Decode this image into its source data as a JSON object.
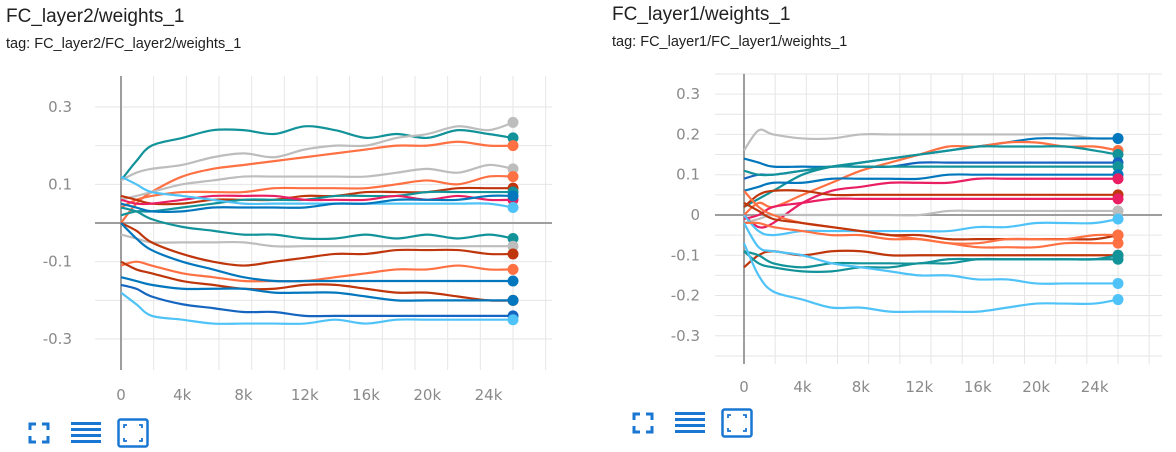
{
  "panels": [
    {
      "title": "FC_layer2/weights_1",
      "tag": "tag: FC_layer2/FC_layer2/weights_1"
    },
    {
      "title": "FC_layer1/weights_1",
      "tag": "tag: FC_layer1/FC_layer1/weights_1"
    }
  ],
  "toolbar_icons": [
    "expand-icon",
    "toggle-data-icon",
    "fit-domain-icon"
  ],
  "accent_color": "#1976d2",
  "chart_data": [
    {
      "type": "line",
      "xlim": [
        0,
        25600
      ],
      "ylim": [
        -0.38,
        0.38
      ],
      "x_ticks": [
        0,
        4000,
        8000,
        12000,
        16000,
        20000,
        24000
      ],
      "x_tick_labels": [
        "0",
        "4k",
        "8k",
        "12k",
        "16k",
        "20k",
        "24k"
      ],
      "y_ticks": [
        0.3,
        0.1,
        -0.1,
        -0.3
      ],
      "y_tick_labels": [
        "0.3",
        "0.1",
        "-0.1",
        "-0.3"
      ],
      "grid": true,
      "x": [
        0,
        1000,
        2000,
        4000,
        6000,
        8000,
        10000,
        12000,
        14000,
        16000,
        18000,
        20000,
        22000,
        24000,
        25600
      ],
      "series": [
        {
          "color": "#12939a",
          "values": [
            0.11,
            0.16,
            0.2,
            0.22,
            0.24,
            0.24,
            0.23,
            0.25,
            0.24,
            0.22,
            0.23,
            0.22,
            0.24,
            0.23,
            0.22
          ]
        },
        {
          "color": "#bdbdbd",
          "values": [
            0.11,
            0.13,
            0.14,
            0.15,
            0.17,
            0.18,
            0.17,
            0.19,
            0.2,
            0.2,
            0.22,
            0.23,
            0.25,
            0.24,
            0.26
          ]
        },
        {
          "color": "#ff7043",
          "values": [
            0.0,
            0.05,
            0.08,
            0.12,
            0.14,
            0.15,
            0.16,
            0.17,
            0.18,
            0.19,
            0.2,
            0.2,
            0.21,
            0.2,
            0.2
          ]
        },
        {
          "color": "#bdbdbd",
          "values": [
            0.06,
            0.07,
            0.08,
            0.1,
            0.11,
            0.12,
            0.12,
            0.12,
            0.12,
            0.12,
            0.13,
            0.14,
            0.13,
            0.15,
            0.14
          ]
        },
        {
          "color": "#ff7043",
          "values": [
            0.04,
            0.06,
            0.07,
            0.08,
            0.08,
            0.08,
            0.09,
            0.09,
            0.09,
            0.09,
            0.1,
            0.11,
            0.1,
            0.12,
            0.12
          ]
        },
        {
          "color": "#bf360c",
          "values": [
            0.07,
            0.06,
            0.05,
            0.05,
            0.06,
            0.06,
            0.06,
            0.07,
            0.07,
            0.08,
            0.08,
            0.08,
            0.09,
            0.09,
            0.09
          ]
        },
        {
          "color": "#12939a",
          "values": [
            0.02,
            0.03,
            0.03,
            0.04,
            0.05,
            0.06,
            0.06,
            0.06,
            0.07,
            0.07,
            0.07,
            0.08,
            0.08,
            0.08,
            0.08
          ]
        },
        {
          "color": "#e91e63",
          "values": [
            0.06,
            0.05,
            0.05,
            0.06,
            0.07,
            0.07,
            0.07,
            0.06,
            0.06,
            0.06,
            0.07,
            0.06,
            0.07,
            0.06,
            0.06
          ]
        },
        {
          "color": "#4fc3f7",
          "values": [
            0.12,
            0.1,
            0.08,
            0.07,
            0.06,
            0.05,
            0.05,
            0.05,
            0.05,
            0.05,
            0.05,
            0.05,
            0.05,
            0.05,
            0.04
          ]
        },
        {
          "color": "#0277bd",
          "values": [
            0.05,
            0.04,
            0.03,
            0.03,
            0.04,
            0.04,
            0.04,
            0.04,
            0.05,
            0.05,
            0.06,
            0.06,
            0.06,
            0.07,
            0.07
          ]
        },
        {
          "color": "#12939a",
          "values": [
            0.04,
            0.03,
            0.01,
            -0.01,
            -0.02,
            -0.03,
            -0.03,
            -0.04,
            -0.04,
            -0.03,
            -0.04,
            -0.03,
            -0.04,
            -0.03,
            -0.04
          ]
        },
        {
          "color": "#bdbdbd",
          "values": [
            -0.03,
            -0.04,
            -0.05,
            -0.05,
            -0.05,
            -0.05,
            -0.06,
            -0.06,
            -0.06,
            -0.06,
            -0.06,
            -0.06,
            -0.06,
            -0.06,
            -0.06
          ]
        },
        {
          "color": "#bf360c",
          "values": [
            0.0,
            -0.02,
            -0.05,
            -0.08,
            -0.1,
            -0.11,
            -0.1,
            -0.09,
            -0.08,
            -0.08,
            -0.07,
            -0.07,
            -0.07,
            -0.08,
            -0.08
          ]
        },
        {
          "color": "#ff7043",
          "values": [
            -0.11,
            -0.1,
            -0.11,
            -0.13,
            -0.14,
            -0.15,
            -0.15,
            -0.15,
            -0.14,
            -0.13,
            -0.12,
            -0.12,
            -0.11,
            -0.12,
            -0.12
          ]
        },
        {
          "color": "#0277bd",
          "values": [
            0.0,
            -0.04,
            -0.07,
            -0.1,
            -0.12,
            -0.14,
            -0.15,
            -0.15,
            -0.15,
            -0.15,
            -0.15,
            -0.15,
            -0.15,
            -0.15,
            -0.15
          ]
        },
        {
          "color": "#bf360c",
          "values": [
            -0.1,
            -0.12,
            -0.13,
            -0.15,
            -0.16,
            -0.17,
            -0.17,
            -0.16,
            -0.16,
            -0.17,
            -0.18,
            -0.18,
            -0.19,
            -0.2,
            -0.2
          ]
        },
        {
          "color": "#0277bd",
          "values": [
            -0.14,
            -0.15,
            -0.16,
            -0.17,
            -0.17,
            -0.17,
            -0.18,
            -0.18,
            -0.18,
            -0.19,
            -0.2,
            -0.2,
            -0.2,
            -0.2,
            -0.2
          ]
        },
        {
          "color": "#1565c0",
          "values": [
            -0.16,
            -0.17,
            -0.19,
            -0.21,
            -0.22,
            -0.23,
            -0.23,
            -0.24,
            -0.24,
            -0.24,
            -0.24,
            -0.24,
            -0.24,
            -0.24,
            -0.24
          ]
        },
        {
          "color": "#4fc3f7",
          "values": [
            -0.18,
            -0.21,
            -0.24,
            -0.25,
            -0.26,
            -0.26,
            -0.26,
            -0.26,
            -0.25,
            -0.26,
            -0.25,
            -0.25,
            -0.25,
            -0.25,
            -0.25
          ]
        }
      ]
    },
    {
      "type": "line",
      "xlim": [
        0,
        25600
      ],
      "ylim": [
        -0.37,
        0.35
      ],
      "x_ticks": [
        0,
        4000,
        8000,
        12000,
        16000,
        20000,
        24000
      ],
      "x_tick_labels": [
        "0",
        "4k",
        "8k",
        "12k",
        "16k",
        "20k",
        "24k"
      ],
      "y_ticks": [
        0.3,
        0.2,
        0.1,
        0,
        -0.1,
        -0.2,
        -0.3
      ],
      "y_tick_labels": [
        "0.3",
        "0.2",
        "0.1",
        "0",
        "-0.1",
        "-0.2",
        "-0.3"
      ],
      "grid": true,
      "x": [
        0,
        1000,
        2000,
        4000,
        6000,
        8000,
        10000,
        12000,
        14000,
        16000,
        18000,
        20000,
        22000,
        24000,
        25600
      ],
      "series": [
        {
          "color": "#bdbdbd",
          "values": [
            0.16,
            0.21,
            0.2,
            0.19,
            0.19,
            0.2,
            0.2,
            0.2,
            0.2,
            0.2,
            0.2,
            0.2,
            0.2,
            0.19,
            0.19
          ]
        },
        {
          "color": "#0277bd",
          "values": [
            0.14,
            0.13,
            0.12,
            0.12,
            0.12,
            0.13,
            0.14,
            0.15,
            0.16,
            0.17,
            0.18,
            0.19,
            0.19,
            0.19,
            0.19
          ]
        },
        {
          "color": "#ff7043",
          "values": [
            0.0,
            0.03,
            0.02,
            0.05,
            0.08,
            0.11,
            0.13,
            0.15,
            0.17,
            0.17,
            0.18,
            0.18,
            0.17,
            0.17,
            0.16
          ]
        },
        {
          "color": "#12939a",
          "values": [
            0.02,
            0.04,
            0.06,
            0.1,
            0.12,
            0.13,
            0.14,
            0.15,
            0.16,
            0.17,
            0.17,
            0.17,
            0.17,
            0.16,
            0.15
          ]
        },
        {
          "color": "#1565c0",
          "values": [
            0.09,
            0.1,
            0.1,
            0.11,
            0.12,
            0.12,
            0.12,
            0.13,
            0.13,
            0.13,
            0.13,
            0.13,
            0.13,
            0.13,
            0.13
          ]
        },
        {
          "color": "#12939a",
          "values": [
            0.11,
            0.1,
            0.1,
            0.11,
            0.12,
            0.12,
            0.12,
            0.12,
            0.12,
            0.12,
            0.12,
            0.12,
            0.12,
            0.12,
            0.12
          ]
        },
        {
          "color": "#0277bd",
          "values": [
            0.06,
            0.07,
            0.08,
            0.08,
            0.09,
            0.09,
            0.09,
            0.09,
            0.1,
            0.1,
            0.1,
            0.1,
            0.1,
            0.1,
            0.1
          ]
        },
        {
          "color": "#e91e63",
          "values": [
            0.0,
            -0.03,
            -0.02,
            0.03,
            0.06,
            0.07,
            0.08,
            0.08,
            0.08,
            0.09,
            0.09,
            0.09,
            0.09,
            0.09,
            0.09
          ]
        },
        {
          "color": "#bf360c",
          "values": [
            0.02,
            0.05,
            0.06,
            0.06,
            0.05,
            0.05,
            0.05,
            0.05,
            0.05,
            0.05,
            0.05,
            0.05,
            0.05,
            0.05,
            0.05
          ]
        },
        {
          "color": "#e91e63",
          "values": [
            -0.01,
            0.0,
            0.02,
            0.03,
            0.04,
            0.04,
            0.04,
            0.04,
            0.04,
            0.04,
            0.04,
            0.04,
            0.04,
            0.04,
            0.04
          ]
        },
        {
          "color": "#bdbdbd",
          "values": [
            -0.02,
            -0.01,
            0.0,
            0.0,
            0.0,
            0.0,
            0.0,
            0.0,
            0.01,
            0.01,
            0.01,
            0.01,
            0.01,
            0.01,
            0.01
          ]
        },
        {
          "color": "#4fc3f7",
          "values": [
            0.0,
            -0.04,
            -0.05,
            -0.04,
            -0.04,
            -0.04,
            -0.04,
            -0.04,
            -0.04,
            -0.03,
            -0.03,
            -0.02,
            -0.02,
            -0.02,
            -0.01
          ]
        },
        {
          "color": "#ff7043",
          "values": [
            0.06,
            0.02,
            0.0,
            -0.02,
            -0.03,
            -0.04,
            -0.05,
            -0.06,
            -0.07,
            -0.08,
            -0.08,
            -0.08,
            -0.07,
            -0.07,
            -0.07
          ]
        },
        {
          "color": "#bf360c",
          "values": [
            0.03,
            0.01,
            -0.01,
            -0.02,
            -0.03,
            -0.04,
            -0.05,
            -0.05,
            -0.06,
            -0.06,
            -0.06,
            -0.06,
            -0.06,
            -0.06,
            -0.05
          ]
        },
        {
          "color": "#ff7043",
          "values": [
            -0.02,
            -0.02,
            -0.03,
            -0.04,
            -0.05,
            -0.05,
            -0.06,
            -0.06,
            -0.07,
            -0.07,
            -0.06,
            -0.06,
            -0.06,
            -0.05,
            -0.05
          ]
        },
        {
          "color": "#bf360c",
          "values": [
            -0.13,
            -0.1,
            -0.09,
            -0.1,
            -0.09,
            -0.09,
            -0.1,
            -0.1,
            -0.1,
            -0.1,
            -0.1,
            -0.1,
            -0.1,
            -0.1,
            -0.1
          ]
        },
        {
          "color": "#12939a",
          "values": [
            -0.09,
            -0.1,
            -0.12,
            -0.13,
            -0.12,
            -0.12,
            -0.12,
            -0.12,
            -0.11,
            -0.11,
            -0.11,
            -0.11,
            -0.11,
            -0.11,
            -0.11
          ]
        },
        {
          "color": "#12939a",
          "values": [
            -0.09,
            -0.12,
            -0.13,
            -0.14,
            -0.14,
            -0.13,
            -0.13,
            -0.12,
            -0.12,
            -0.11,
            -0.11,
            -0.11,
            -0.11,
            -0.11,
            -0.1
          ]
        },
        {
          "color": "#4fc3f7",
          "values": [
            -0.02,
            -0.08,
            -0.09,
            -0.1,
            -0.12,
            -0.13,
            -0.14,
            -0.15,
            -0.15,
            -0.16,
            -0.16,
            -0.17,
            -0.17,
            -0.17,
            -0.17
          ]
        },
        {
          "color": "#4fc3f7",
          "values": [
            -0.07,
            -0.15,
            -0.19,
            -0.21,
            -0.23,
            -0.23,
            -0.24,
            -0.24,
            -0.24,
            -0.24,
            -0.23,
            -0.22,
            -0.22,
            -0.22,
            -0.21
          ]
        }
      ]
    }
  ]
}
